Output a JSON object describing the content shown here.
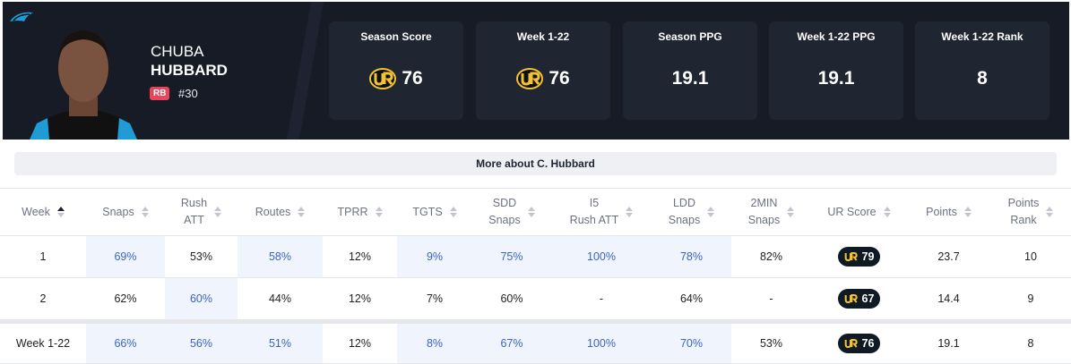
{
  "player": {
    "first_name": "CHUBA",
    "last_name": "HUBBARD",
    "position": "RB",
    "number": "#30"
  },
  "stats": [
    {
      "label": "Season Score",
      "value": "76"
    },
    {
      "label": "Week 1-22",
      "value": "76"
    },
    {
      "label": "Season PPG",
      "value": "19.1"
    },
    {
      "label": "Week 1-22 PPG",
      "value": "19.1"
    },
    {
      "label": "Week 1-22 Rank",
      "value": "8"
    }
  ],
  "more_button": "More about C. Hubbard",
  "table": {
    "headers": [
      "Week",
      "Snaps",
      "Rush\nATT",
      "Routes",
      "TPRR",
      "TGTS",
      "SDD\nSnaps",
      "I5\nRush ATT",
      "LDD\nSnaps",
      "2MIN\nSnaps",
      "UR Score",
      "Points",
      "Points\nRank"
    ],
    "rows": [
      [
        "1",
        "69%",
        "53%",
        "58%",
        "12%",
        "9%",
        "75%",
        "100%",
        "78%",
        "82%",
        "79",
        "23.7",
        "10"
      ],
      [
        "2",
        "62%",
        "60%",
        "44%",
        "12%",
        "7%",
        "60%",
        "-",
        "64%",
        "-",
        "67",
        "14.4",
        "9"
      ]
    ],
    "total": [
      "Week 1-22",
      "66%",
      "56%",
      "51%",
      "12%",
      "8%",
      "67%",
      "100%",
      "70%",
      "53%",
      "76",
      "19.1",
      "8"
    ]
  }
}
